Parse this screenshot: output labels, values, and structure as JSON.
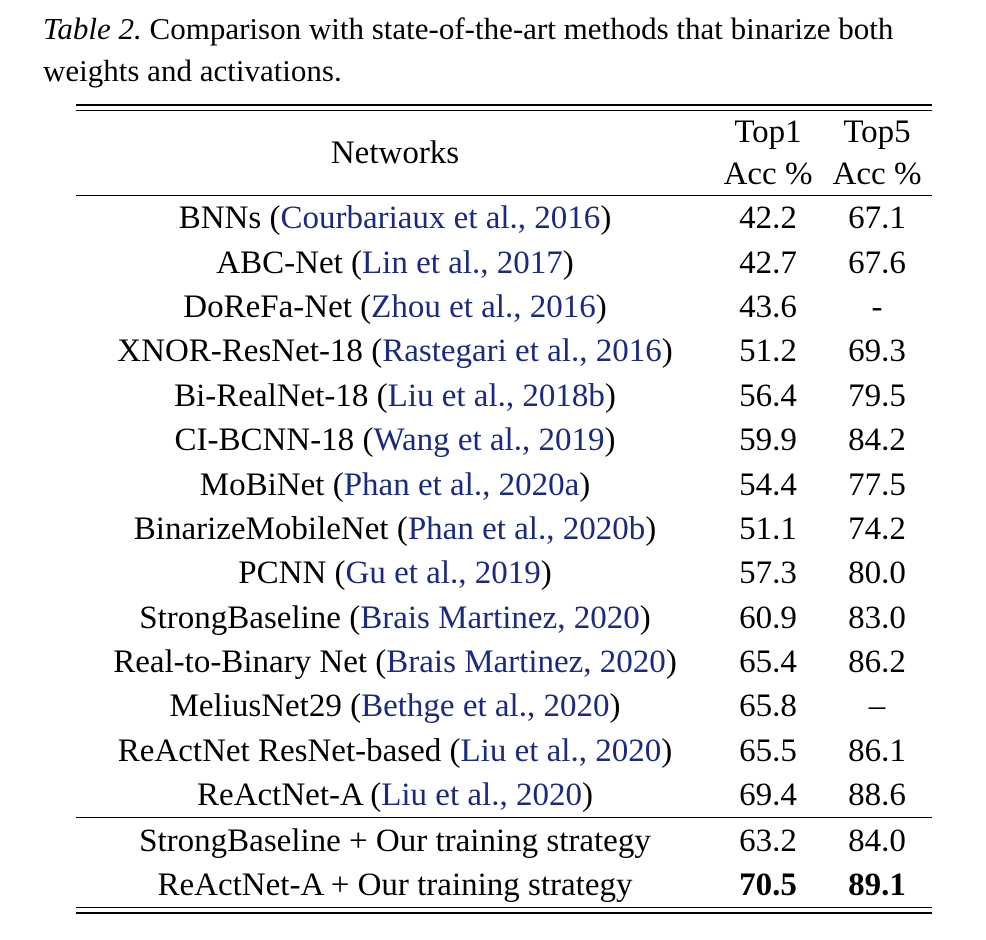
{
  "caption": {
    "label": "Table 2.",
    "text": " Comparison with state-of-the-art methods that binarize both weights and activations."
  },
  "header": {
    "networks": "Networks",
    "top1_line1": "Top1",
    "top1_line2": "Acc %",
    "top5_line1": "Top5",
    "top5_line2": "Acc %"
  },
  "rows": [
    {
      "name": "BNNs",
      "cite": "Courbariaux et al., 2016",
      "top1": "42.2",
      "top5": "67.1"
    },
    {
      "name": "ABC-Net",
      "cite": "Lin et al., 2017",
      "top1": "42.7",
      "top5": "67.6"
    },
    {
      "name": "DoReFa-Net",
      "cite": "Zhou et al., 2016",
      "top1": "43.6",
      "top5": "-"
    },
    {
      "name": "XNOR-ResNet-18",
      "cite": "Rastegari et al., 2016",
      "top1": "51.2",
      "top5": "69.3"
    },
    {
      "name": "Bi-RealNet-18",
      "cite": "Liu et al., 2018b",
      "top1": "56.4",
      "top5": "79.5"
    },
    {
      "name": "CI-BCNN-18",
      "cite": "Wang et al., 2019",
      "top1": "59.9",
      "top5": "84.2"
    },
    {
      "name": "MoBiNet",
      "cite": "Phan et al., 2020a",
      "top1": "54.4",
      "top5": "77.5"
    },
    {
      "name": "BinarizeMobileNet",
      "cite": "Phan et al., 2020b",
      "top1": "51.1",
      "top5": "74.2"
    },
    {
      "name": "PCNN ",
      "cite": "Gu et al., 2019",
      "top1": "57.3",
      "top5": "80.0"
    },
    {
      "name": "StrongBaseline",
      "cite": "Brais Martinez, 2020",
      "top1": "60.9",
      "top5": "83.0"
    },
    {
      "name": "Real-to-Binary Net",
      "cite": "Brais Martinez, 2020",
      "top1": "65.4",
      "top5": "86.2"
    },
    {
      "name": "MeliusNet29",
      "cite": "Bethge et al., 2020",
      "top1": "65.8",
      "top5": "–"
    },
    {
      "name": "ReActNet ResNet-based",
      "cite": "Liu et al., 2020",
      "top1": "65.5",
      "top5": "86.1"
    },
    {
      "name": "ReActNet-A",
      "cite": "Liu et al., 2020",
      "top1": "69.4",
      "top5": "88.6"
    }
  ],
  "ours": [
    {
      "name": "StrongBaseline + Our training strategy",
      "top1": "63.2",
      "top5": "84.0"
    },
    {
      "name": "ReActNet-A + Our training strategy",
      "top1": "70.5",
      "top5": "89.1"
    }
  ]
}
